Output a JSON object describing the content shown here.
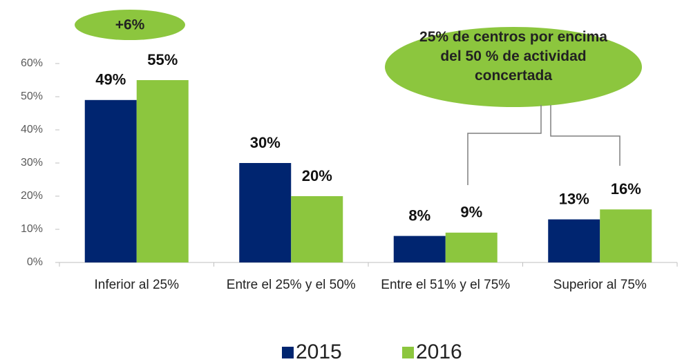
{
  "chart_data": {
    "type": "bar",
    "categories": [
      "Inferior al 25%",
      "Entre el 25% y el 50%",
      "Entre el 51% y el 75%",
      "Superior al 75%"
    ],
    "series": [
      {
        "name": "2015",
        "color": "#002570",
        "values": [
          49,
          30,
          8,
          13
        ],
        "value_labels": [
          "49%",
          "30%",
          "8%",
          "13%"
        ]
      },
      {
        "name": "2016",
        "color": "#8cc63e",
        "values": [
          55,
          20,
          9,
          16
        ],
        "value_labels": [
          "55%",
          "20%",
          "9%",
          "16%"
        ]
      }
    ],
    "ylim": [
      0,
      60
    ],
    "yticks": [
      {
        "value": 0,
        "label": "0%"
      },
      {
        "value": 10,
        "label": "10%"
      },
      {
        "value": 20,
        "label": "20%"
      },
      {
        "value": 30,
        "label": "30%"
      },
      {
        "value": 40,
        "label": "40%"
      },
      {
        "value": 50,
        "label": "50%"
      },
      {
        "value": 60,
        "label": "60%"
      }
    ],
    "annotations": [
      "+6%",
      "25% de centros por encima del 50 % de actividad concertada"
    ],
    "legend": "bottom",
    "grid": false
  }
}
